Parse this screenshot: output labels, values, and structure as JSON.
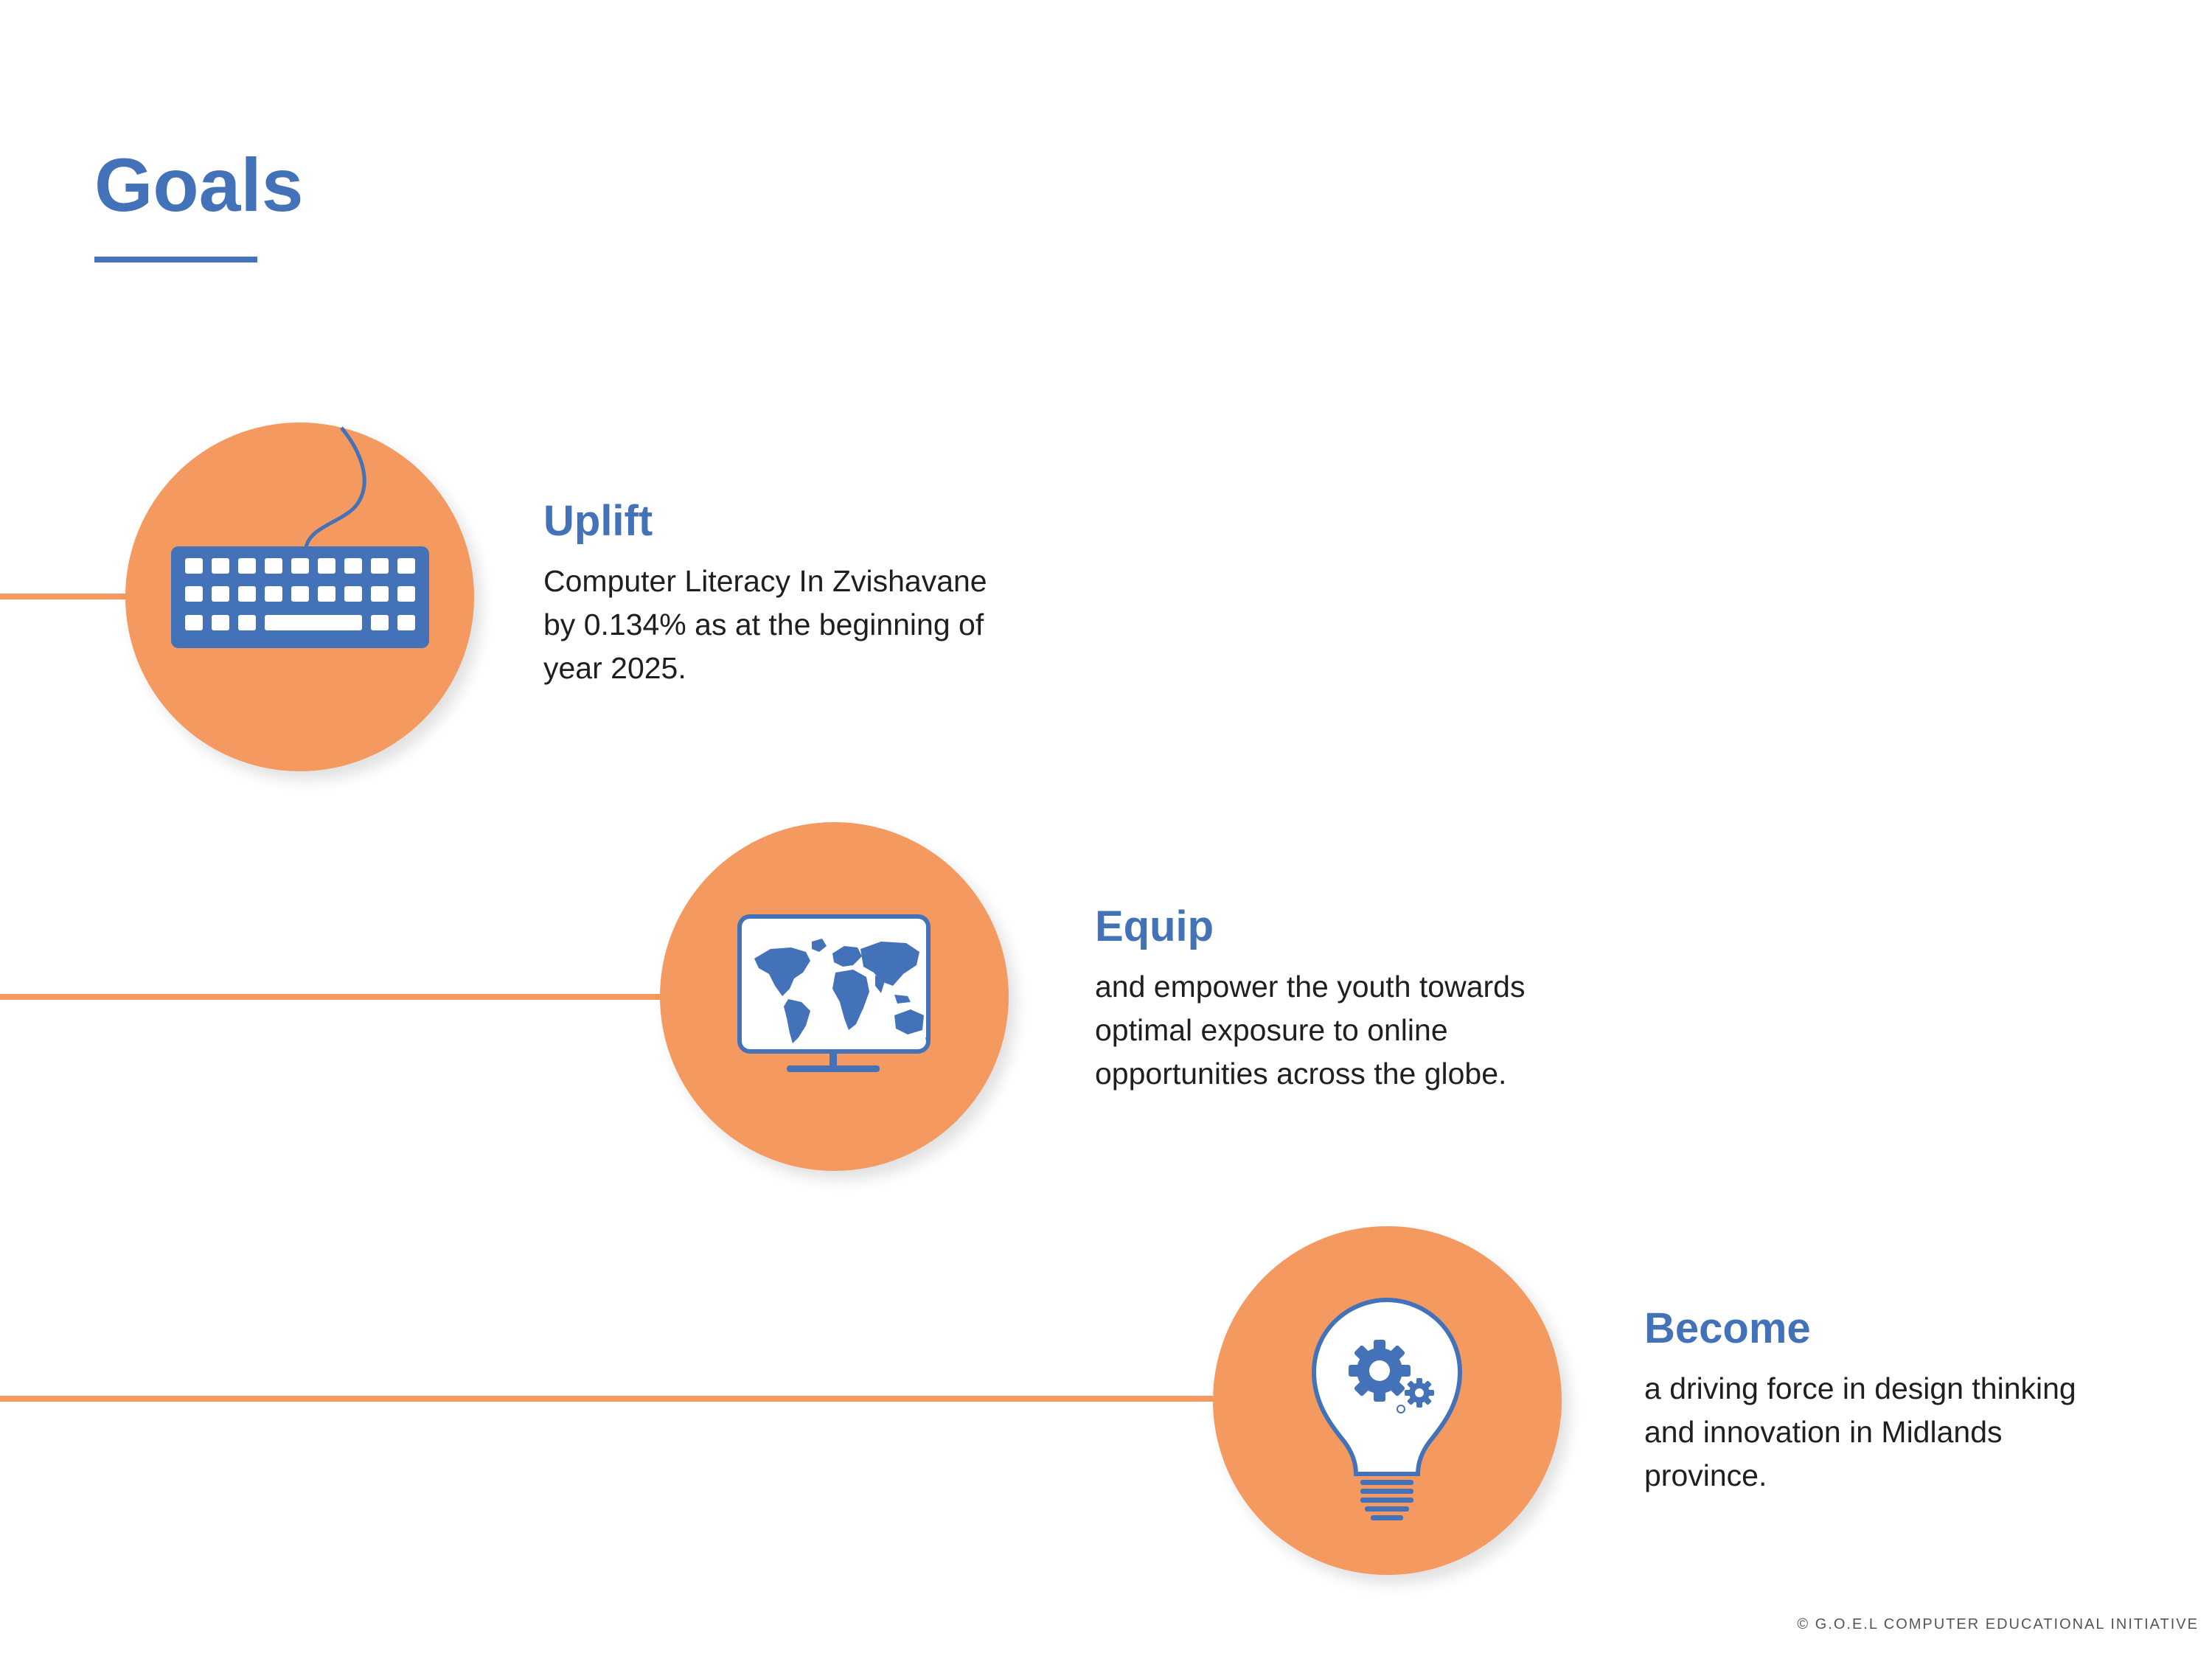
{
  "page": {
    "title": "Goals"
  },
  "colors": {
    "accent_blue": "#4472b8",
    "accent_orange": "#f4995f",
    "text_dark": "#1f1f1f"
  },
  "goals": [
    {
      "icon": "keyboard-icon",
      "heading": "Uplift",
      "description": "Computer Literacy In Zvishavane by 0.134% as at the beginning of year 2025."
    },
    {
      "icon": "world-map-monitor-icon",
      "heading": "Equip",
      "description": "and empower the youth towards optimal exposure to online opportunities across the globe."
    },
    {
      "icon": "lightbulb-gears-icon",
      "heading": "Become",
      "description": "a driving force in design thinking and innovation in Midlands province."
    }
  ],
  "footer": {
    "copyright": "© G.O.E.L COMPUTER EDUCATIONAL INITIATIVE"
  }
}
